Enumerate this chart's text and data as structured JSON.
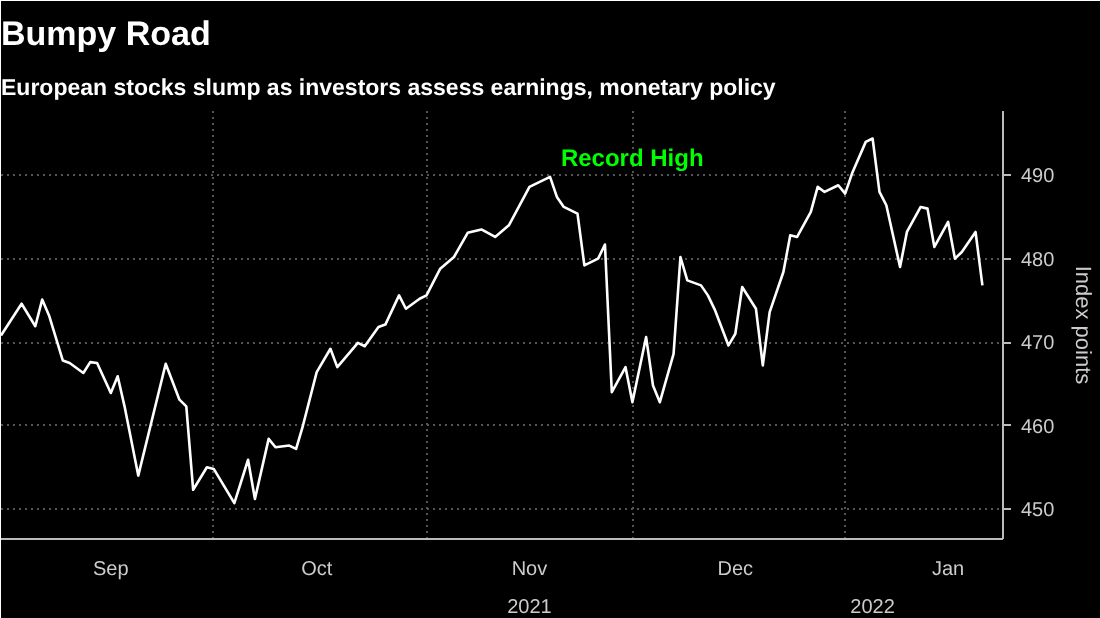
{
  "chart_data": {
    "type": "line",
    "title": "Bumpy Road",
    "subtitle": "European stocks slump as investors assess earnings, monetary policy",
    "ylabel": "Index points",
    "x": [
      "2021-08-31",
      "2021-09-03",
      "2021-09-05",
      "2021-09-06",
      "2021-09-07",
      "2021-09-09",
      "2021-09-10",
      "2021-09-12",
      "2021-09-13",
      "2021-09-14",
      "2021-09-16",
      "2021-09-17",
      "2021-09-18",
      "2021-09-20",
      "2021-09-24",
      "2021-09-26",
      "2021-09-27",
      "2021-09-28",
      "2021-09-30",
      "2021-10-01",
      "2021-10-04",
      "2021-10-06",
      "2021-10-07",
      "2021-10-09",
      "2021-10-10",
      "2021-10-12",
      "2021-10-13",
      "2021-10-14",
      "2021-10-16",
      "2021-10-18",
      "2021-10-19",
      "2021-10-22",
      "2021-10-23",
      "2021-10-25",
      "2021-10-26",
      "2021-10-28",
      "2021-10-29",
      "2021-10-31",
      "2021-11-01",
      "2021-11-03",
      "2021-11-05",
      "2021-11-07",
      "2021-11-09",
      "2021-11-11",
      "2021-11-13",
      "2021-11-16",
      "2021-11-19",
      "2021-11-20",
      "2021-11-21",
      "2021-11-23",
      "2021-11-24",
      "2021-11-26",
      "2021-11-27",
      "2021-11-28",
      "2021-11-30",
      "2021-12-01",
      "2021-12-03",
      "2021-12-04",
      "2021-12-05",
      "2021-12-07",
      "2021-12-08",
      "2021-12-09",
      "2021-12-11",
      "2021-12-12",
      "2021-12-13",
      "2021-12-15",
      "2021-12-16",
      "2021-12-17",
      "2021-12-19",
      "2021-12-20",
      "2021-12-21",
      "2021-12-23",
      "2021-12-24",
      "2021-12-25",
      "2021-12-27",
      "2021-12-28",
      "2021-12-29",
      "2021-12-31",
      "2022-01-01",
      "2022-01-02",
      "2022-01-04",
      "2022-01-05",
      "2022-01-06",
      "2022-01-07",
      "2022-01-09",
      "2022-01-10",
      "2022-01-12",
      "2022-01-13",
      "2022-01-14",
      "2022-01-16",
      "2022-01-17",
      "2022-01-18",
      "2022-01-20",
      "2022-01-21"
    ],
    "series": [
      {
        "color": "#ffffff",
        "values": [
          470.8,
          474.6,
          471.9,
          475.1,
          473.2,
          467.8,
          467.5,
          466.3,
          467.6,
          467.5,
          463.9,
          465.9,
          462.3,
          454.0,
          467.4,
          463.1,
          462.3,
          452.3,
          455.0,
          454.8,
          450.7,
          455.9,
          451.2,
          458.4,
          457.4,
          457.6,
          457.2,
          460.0,
          466.4,
          469.2,
          467.0,
          469.9,
          469.5,
          471.8,
          472.1,
          475.6,
          474.0,
          475.2,
          475.6,
          478.8,
          480.2,
          483.1,
          483.5,
          482.6,
          484.0,
          488.6,
          489.8,
          487.4,
          486.2,
          485.4,
          479.2,
          480.0,
          481.7,
          464.0,
          467.0,
          462.8,
          470.6,
          464.8,
          462.8,
          468.6,
          480.2,
          477.4,
          476.8,
          475.6,
          473.9,
          469.6,
          471.0,
          476.6,
          474.0,
          467.2,
          473.6,
          478.4,
          482.8,
          482.6,
          485.6,
          488.6,
          488.0,
          488.8,
          487.8,
          490.2,
          494.0,
          494.4,
          488.0,
          486.4,
          479.0,
          483.2,
          486.2,
          486.0,
          481.4,
          484.4,
          480.0,
          480.8,
          483.2,
          476.8
        ]
      }
    ],
    "xlim": [
      "2021-08-31",
      "2022-01-24"
    ],
    "xticks": [
      {
        "value": "2021-09-16",
        "label": "Sep"
      },
      {
        "value": "2021-10-01",
        "label": null
      },
      {
        "value": "2021-10-16",
        "label": "Oct"
      },
      {
        "value": "2021-11-01",
        "label": null
      },
      {
        "value": "2021-11-16",
        "label": "Nov"
      },
      {
        "value": "2021-12-01",
        "label": null
      },
      {
        "value": "2021-12-16",
        "label": "Dec"
      },
      {
        "value": "2022-01-01",
        "label": null
      },
      {
        "value": "2022-01-16",
        "label": "Jan"
      }
    ],
    "x2lim": [
      "2021-08-31",
      "2022-01-24"
    ],
    "x2ticks": [
      {
        "value": "2021-11-16",
        "label": "2021"
      },
      {
        "value": "2022-01-05",
        "label": "2022"
      }
    ],
    "ylim": [
      446.4,
      497.7
    ],
    "yticks": [
      450,
      460,
      470,
      480,
      490
    ],
    "grid": true,
    "marker": "none",
    "line_style": "solid",
    "annotations": [
      "Record High"
    ]
  }
}
